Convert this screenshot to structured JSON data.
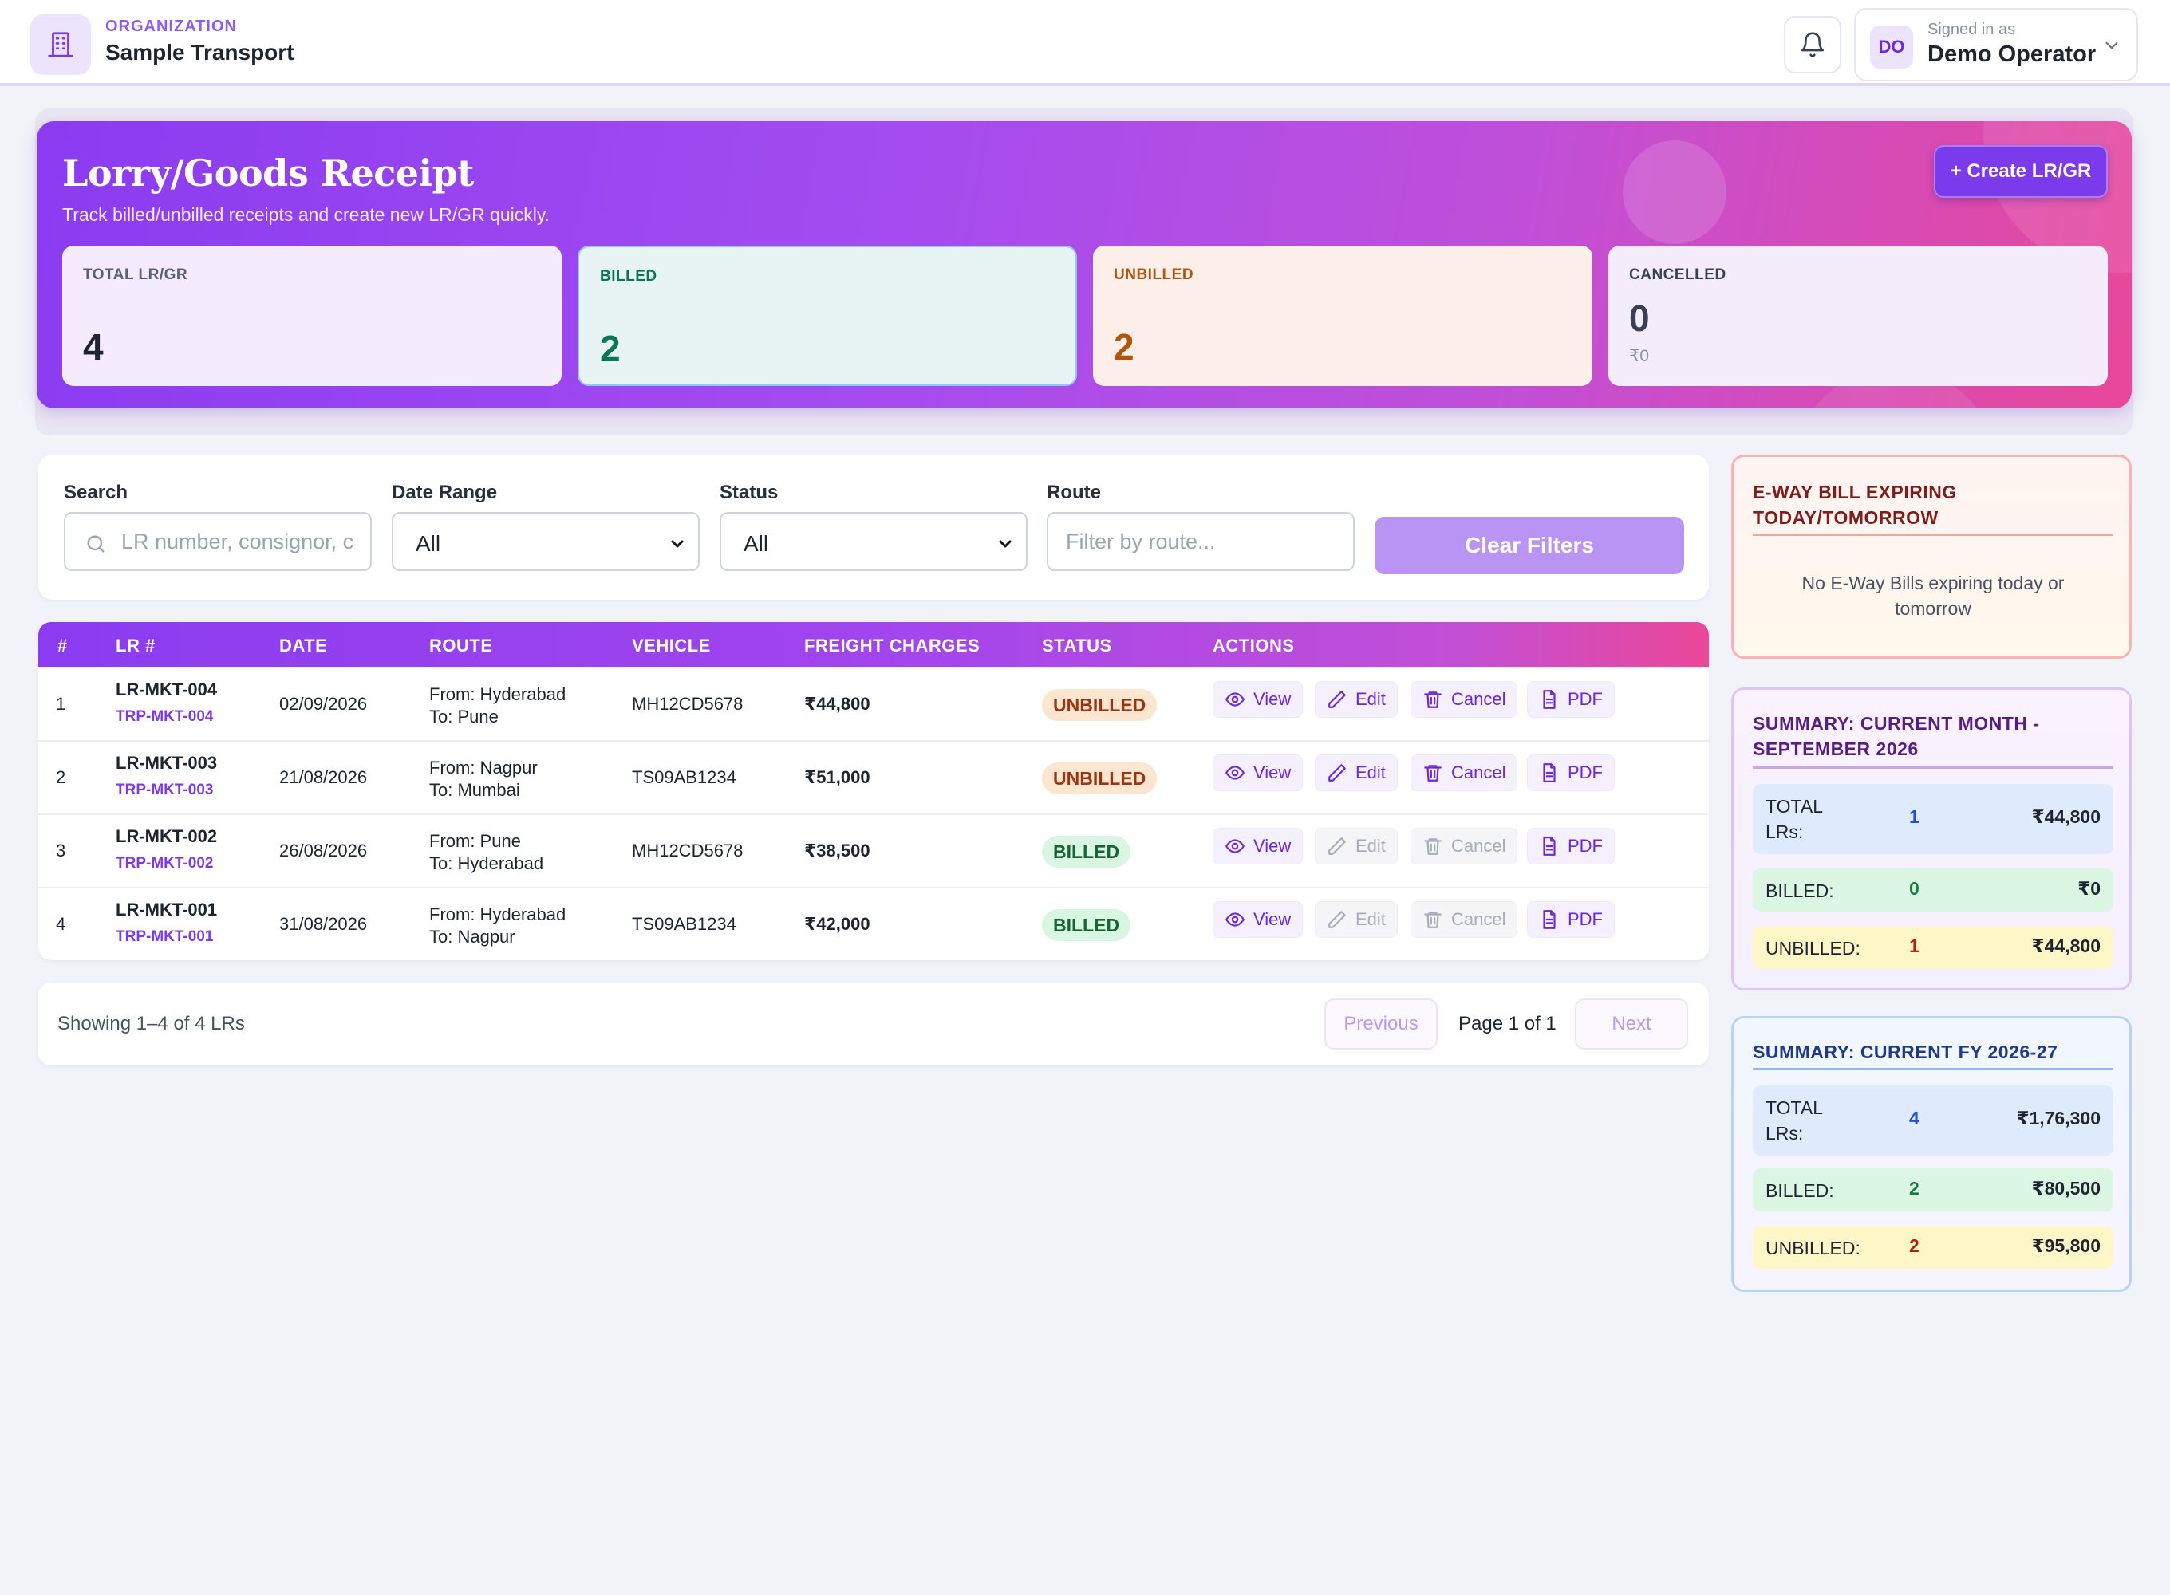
{
  "header": {
    "org_label": "ORGANIZATION",
    "org_name": "Sample Transport",
    "signed_label": "Signed in as",
    "user_name": "Demo Operator",
    "user_initials": "DO"
  },
  "hero": {
    "title": "Lorry/Goods Receipt",
    "subtitle": "Track billed/unbilled receipts and create new LR/GR quickly.",
    "create_label": "+ Create LR/GR",
    "stats": {
      "total": {
        "label": "TOTAL LR/GR",
        "value": "4"
      },
      "billed": {
        "label": "BILLED",
        "value": "2"
      },
      "unbilled": {
        "label": "UNBILLED",
        "value": "2"
      },
      "cancelled": {
        "label": "CANCELLED",
        "value": "0",
        "amount": "₹0"
      }
    }
  },
  "filters": {
    "search_label": "Search",
    "search_placeholder": "LR number, consignor, c",
    "date_label": "Date Range",
    "date_value": "All",
    "status_label": "Status",
    "status_value": "All",
    "route_label": "Route",
    "route_placeholder": "Filter by route...",
    "clear_label": "Clear Filters"
  },
  "table": {
    "headers": [
      "#",
      "LR #",
      "DATE",
      "ROUTE",
      "VEHICLE",
      "FREIGHT CHARGES",
      "STATUS",
      "ACTIONS"
    ],
    "action_labels": {
      "view": "View",
      "edit": "Edit",
      "cancel": "Cancel",
      "pdf": "PDF"
    },
    "rows": [
      {
        "num": "1",
        "lr": "LR-MKT-004",
        "trp": "TRP-MKT-004",
        "date": "02/09/2026",
        "from": "From: Hyderabad",
        "to": "To: Pune",
        "vehicle": "MH12CD5678",
        "freight": "₹44,800",
        "status": "UNBILLED"
      },
      {
        "num": "2",
        "lr": "LR-MKT-003",
        "trp": "TRP-MKT-003",
        "date": "21/08/2026",
        "from": "From: Nagpur",
        "to": "To: Mumbai",
        "vehicle": "TS09AB1234",
        "freight": "₹51,000",
        "status": "UNBILLED"
      },
      {
        "num": "3",
        "lr": "LR-MKT-002",
        "trp": "TRP-MKT-002",
        "date": "26/08/2026",
        "from": "From: Pune",
        "to": "To: Hyderabad",
        "vehicle": "MH12CD5678",
        "freight": "₹38,500",
        "status": "BILLED"
      },
      {
        "num": "4",
        "lr": "LR-MKT-001",
        "trp": "TRP-MKT-001",
        "date": "31/08/2026",
        "from": "From: Hyderabad",
        "to": "To: Nagpur",
        "vehicle": "TS09AB1234",
        "freight": "₹42,000",
        "status": "BILLED"
      }
    ]
  },
  "pager": {
    "showing": "Showing 1–4 of 4 LRs",
    "previous": "Previous",
    "page_info": "Page 1 of 1",
    "next": "Next"
  },
  "eway": {
    "title": "E-WAY BILL EXPIRING TODAY/TOMORROW",
    "empty": "No E-Way Bills expiring today or tomorrow"
  },
  "summary_month": {
    "title": "SUMMARY: CURRENT MONTH - SEPTEMBER 2026",
    "total_label": "TOTAL LRs:",
    "total_count": "1",
    "total_amount": "₹44,800",
    "billed_label": "BILLED:",
    "billed_count": "0",
    "billed_amount": "₹0",
    "unbilled_label": "UNBILLED:",
    "unbilled_count": "1",
    "unbilled_amount": "₹44,800"
  },
  "summary_fy": {
    "title": "SUMMARY: CURRENT FY 2026-27",
    "total_label": "TOTAL LRs:",
    "total_count": "4",
    "total_amount": "₹1,76,300",
    "billed_label": "BILLED:",
    "billed_count": "2",
    "billed_amount": "₹80,500",
    "unbilled_label": "UNBILLED:",
    "unbilled_count": "2",
    "unbilled_amount": "₹95,800"
  },
  "colors": {
    "brand": "#8b3cf0",
    "accent_pink": "#ec4899",
    "billed": "#047857",
    "unbilled": "#b45309"
  },
  "icons": {
    "org": "building-icon",
    "bell": "bell-icon",
    "search": "search-icon",
    "view": "eye-icon",
    "edit": "pencil-icon",
    "cancel": "trash-icon",
    "pdf": "file-icon"
  }
}
